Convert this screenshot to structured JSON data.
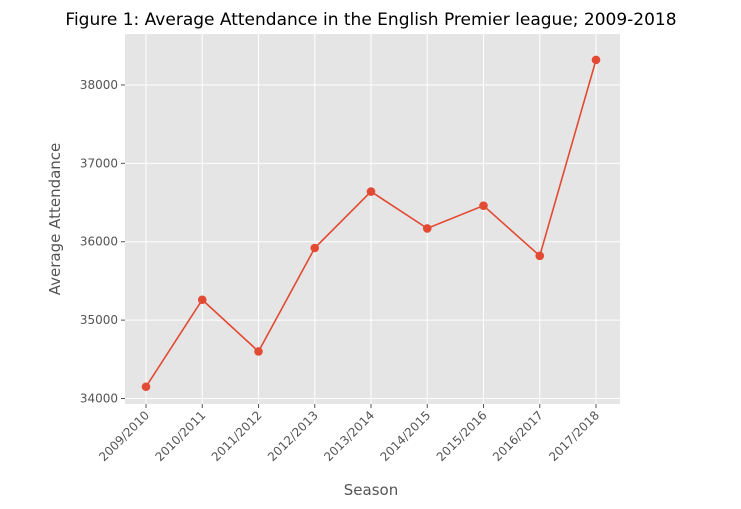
{
  "chart_data": {
    "type": "line",
    "title": "Figure 1: Average Attendance in the English Premier league; 2009-2018",
    "xlabel": "Season",
    "ylabel": "Average Attendance",
    "categories": [
      "2009/2010",
      "2010/2011",
      "2011/2012",
      "2012/2013",
      "2013/2014",
      "2014/2015",
      "2015/2016",
      "2016/2017",
      "2017/2018"
    ],
    "series": [
      {
        "values": [
          34150,
          35260,
          34600,
          35920,
          36640,
          36170,
          36460,
          35820,
          38320
        ],
        "color": "#E24A33"
      }
    ],
    "yticks": [
      34000,
      35000,
      36000,
      37000,
      38000
    ],
    "ylim": [
      33930,
      38650
    ],
    "grid": true,
    "background": "#E5E5E5",
    "marker": "circle"
  }
}
